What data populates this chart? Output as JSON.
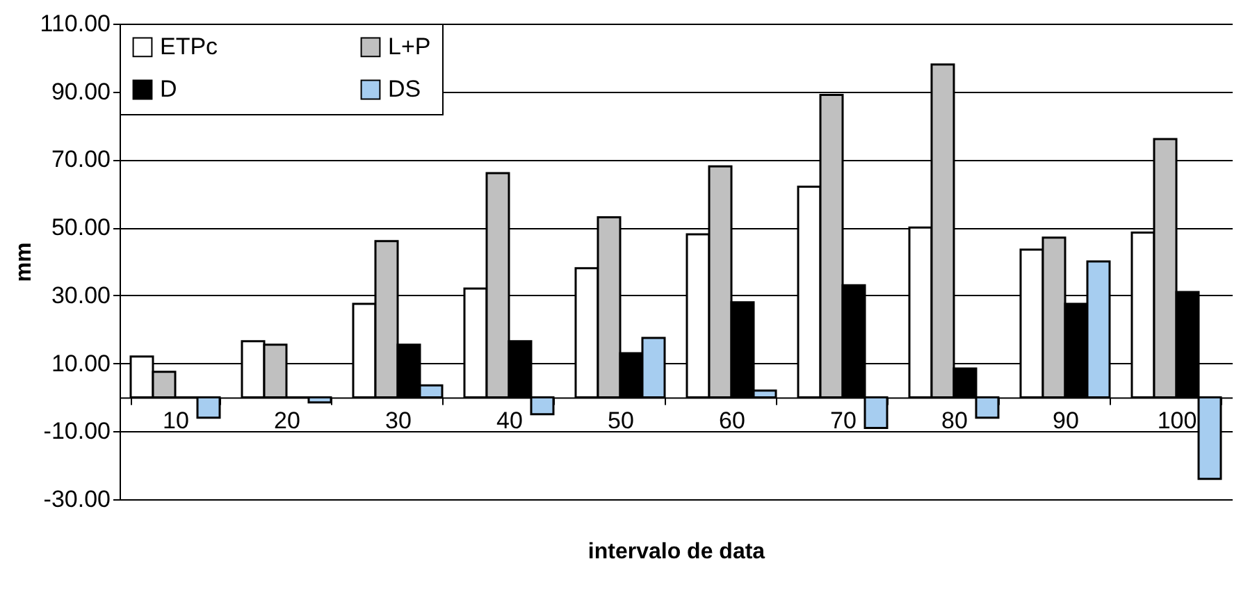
{
  "chart_data": {
    "type": "bar",
    "xlabel": "intervalo de data",
    "ylabel": "mm",
    "categories": [
      "10",
      "20",
      "30",
      "40",
      "50",
      "60",
      "70",
      "80",
      "90",
      "100"
    ],
    "series": [
      {
        "name": "ETPc",
        "color": "#ffffff",
        "values": [
          12,
          16.5,
          27.5,
          32,
          38,
          48,
          62,
          50,
          43.5,
          48.5
        ]
      },
      {
        "name": "L+P",
        "color": "#c0c0c0",
        "values": [
          7.5,
          15.5,
          46,
          66,
          53,
          68,
          89,
          98,
          47,
          76
        ]
      },
      {
        "name": "D",
        "color": "#000000",
        "values": [
          0,
          0,
          15.5,
          16.5,
          13,
          28,
          33,
          8.5,
          27.5,
          31
        ]
      },
      {
        "name": "DS",
        "color": "#a6cdf0",
        "values": [
          -6,
          -1.5,
          3.5,
          -5,
          17.5,
          2,
          -9,
          -6,
          40,
          -24
        ]
      }
    ],
    "ylim": [
      -30,
      110
    ],
    "yticks": [
      {
        "value": -30,
        "label": "-30.00"
      },
      {
        "value": -10,
        "label": "-10.00"
      },
      {
        "value": 10,
        "label": "10.00"
      },
      {
        "value": 30,
        "label": "30.00"
      },
      {
        "value": 50,
        "label": "50.00"
      },
      {
        "value": 70,
        "label": "70.00"
      },
      {
        "value": 90,
        "label": "90.00"
      },
      {
        "value": 110,
        "label": "110.00"
      }
    ],
    "grid": "y",
    "legend": "top left"
  }
}
